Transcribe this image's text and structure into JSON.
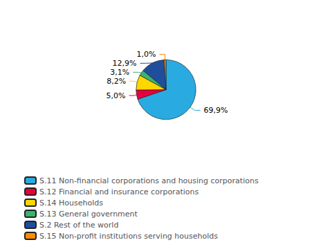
{
  "chart_data": {
    "type": "pie",
    "categories": [
      "S.11 Non-financial corporations and housing corporations",
      "S.12 Financial and insurance corporations",
      "S.14 Households",
      "S.13 General government",
      "S.2 Rest of the world",
      "S.15 Non-profit institutions serving households"
    ],
    "values": [
      69.9,
      5.0,
      8.2,
      3.1,
      12.9,
      1.0
    ],
    "value_labels": [
      "69,9%",
      "5,0%",
      "8,2%",
      "3,1%",
      "12,9%",
      "1,0%"
    ],
    "colors": [
      "#29ABE2",
      "#E8003D",
      "#FFD700",
      "#3CB371",
      "#1F4E9C",
      "#FF8C00"
    ],
    "data_labels": true,
    "legend": "lower left"
  }
}
